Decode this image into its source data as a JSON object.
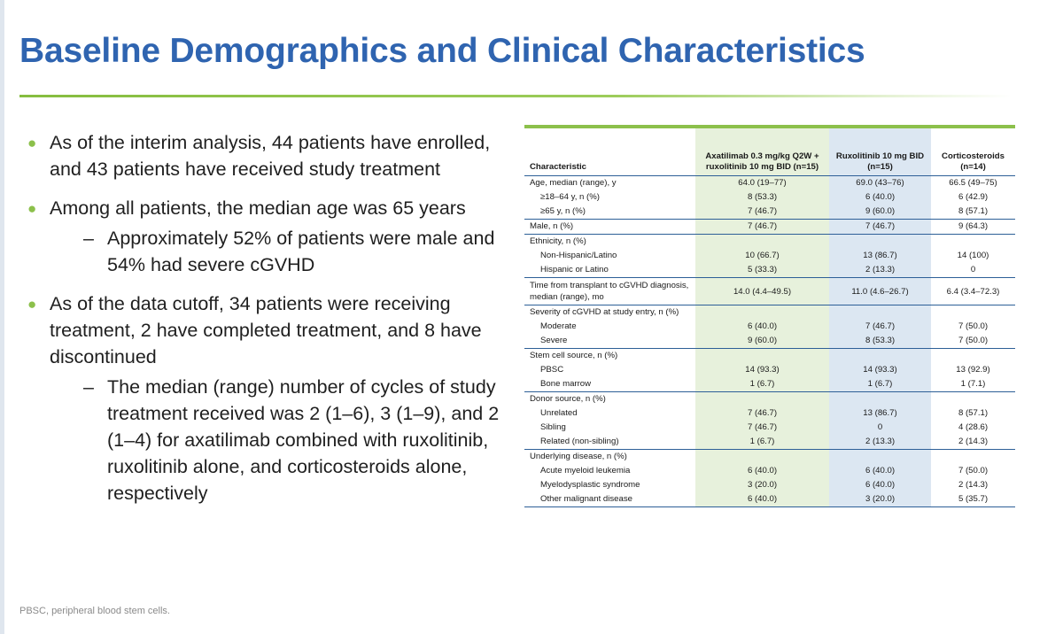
{
  "title": "Baseline Demographics and Clinical Characteristics",
  "bullets": [
    {
      "text": "As of the interim analysis, 44 patients have enrolled, and 43 patients have received study treatment",
      "subs": []
    },
    {
      "text": "Among all patients, the median age was 65 years",
      "subs": [
        "Approximately 52% of patients were male and 54% had severe cGVHD"
      ]
    },
    {
      "text": "As of the data cutoff, 34 patients were receiving treatment, 2 have completed treatment, and 8 have discontinued",
      "subs": [
        "The median (range) number of cycles of study treatment received was 2 (1–6), 3 (1–9), and 2 (1–4) for axatilimab combined with ruxolitinib, ruxolitinib alone, and corticosteroids alone, respectively"
      ]
    }
  ],
  "table": {
    "headers": {
      "characteristic": "Characteristic",
      "col1": "Axatilimab 0.3 mg/kg Q2W + ruxolitinib 10 mg BID (n=15)",
      "col2": "Ruxolitinib 10 mg BID (n=15)",
      "col3": "Corticosteroids (n=14)"
    },
    "rows": [
      {
        "label": "Age, median (range), y",
        "v": [
          "64.0 (19–77)",
          "69.0 (43–76)",
          "66.5 (49–75)"
        ],
        "indent": false,
        "sec": false,
        "tall": false
      },
      {
        "label": "≥18–64 y, n (%)",
        "v": [
          "8 (53.3)",
          "6 (40.0)",
          "6 (42.9)"
        ],
        "indent": true,
        "sec": false,
        "tall": false
      },
      {
        "label": "≥65 y, n (%)",
        "v": [
          "7 (46.7)",
          "9 (60.0)",
          "8 (57.1)"
        ],
        "indent": true,
        "sec": false,
        "tall": false
      },
      {
        "label": "Male, n (%)",
        "v": [
          "7 (46.7)",
          "7 (46.7)",
          "9 (64.3)"
        ],
        "indent": false,
        "sec": true,
        "tall": false
      },
      {
        "label": "Ethnicity, n (%)",
        "v": [
          "",
          "",
          ""
        ],
        "indent": false,
        "sec": true,
        "tall": false
      },
      {
        "label": "Non-Hispanic/Latino",
        "v": [
          "10 (66.7)",
          "13 (86.7)",
          "14 (100)"
        ],
        "indent": true,
        "sec": false,
        "tall": false
      },
      {
        "label": "Hispanic or Latino",
        "v": [
          "5 (33.3)",
          "2 (13.3)",
          "0"
        ],
        "indent": true,
        "sec": false,
        "tall": false
      },
      {
        "label": "Time from transplant to cGVHD diagnosis, median (range), mo",
        "v": [
          "14.0 (4.4–49.5)",
          "11.0 (4.6–26.7)",
          "6.4 (3.4–72.3)"
        ],
        "indent": false,
        "sec": true,
        "tall": true
      },
      {
        "label": "Severity of cGVHD at study entry, n (%)",
        "v": [
          "",
          "",
          ""
        ],
        "indent": false,
        "sec": true,
        "tall": false
      },
      {
        "label": "Moderate",
        "v": [
          "6 (40.0)",
          "7 (46.7)",
          "7 (50.0)"
        ],
        "indent": true,
        "sec": false,
        "tall": false
      },
      {
        "label": "Severe",
        "v": [
          "9 (60.0)",
          "8 (53.3)",
          "7 (50.0)"
        ],
        "indent": true,
        "sec": false,
        "tall": false
      },
      {
        "label": "Stem cell source, n (%)",
        "v": [
          "",
          "",
          ""
        ],
        "indent": false,
        "sec": true,
        "tall": false
      },
      {
        "label": "PBSC",
        "v": [
          "14 (93.3)",
          "14 (93.3)",
          "13 (92.9)"
        ],
        "indent": true,
        "sec": false,
        "tall": false
      },
      {
        "label": "Bone marrow",
        "v": [
          "1 (6.7)",
          "1 (6.7)",
          "1 (7.1)"
        ],
        "indent": true,
        "sec": false,
        "tall": false
      },
      {
        "label": "Donor source, n (%)",
        "v": [
          "",
          "",
          ""
        ],
        "indent": false,
        "sec": true,
        "tall": false
      },
      {
        "label": "Unrelated",
        "v": [
          "7 (46.7)",
          "13 (86.7)",
          "8 (57.1)"
        ],
        "indent": true,
        "sec": false,
        "tall": false
      },
      {
        "label": "Sibling",
        "v": [
          "7 (46.7)",
          "0",
          "4 (28.6)"
        ],
        "indent": true,
        "sec": false,
        "tall": false
      },
      {
        "label": "Related (non-sibling)",
        "v": [
          "1 (6.7)",
          "2 (13.3)",
          "2 (14.3)"
        ],
        "indent": true,
        "sec": false,
        "tall": false
      },
      {
        "label": "Underlying disease, n (%)",
        "v": [
          "",
          "",
          ""
        ],
        "indent": false,
        "sec": true,
        "tall": false
      },
      {
        "label": "Acute myeloid leukemia",
        "v": [
          "6 (40.0)",
          "6 (40.0)",
          "7 (50.0)"
        ],
        "indent": true,
        "sec": false,
        "tall": false
      },
      {
        "label": "Myelodysplastic syndrome",
        "v": [
          "3 (20.0)",
          "6 (40.0)",
          "2 (14.3)"
        ],
        "indent": true,
        "sec": false,
        "tall": false
      },
      {
        "label": "Other malignant disease",
        "v": [
          "6 (40.0)",
          "3 (20.0)",
          "5 (35.7)"
        ],
        "indent": true,
        "sec": false,
        "tall": false
      }
    ]
  },
  "footnote": "PBSC, peripheral blood stem cells."
}
